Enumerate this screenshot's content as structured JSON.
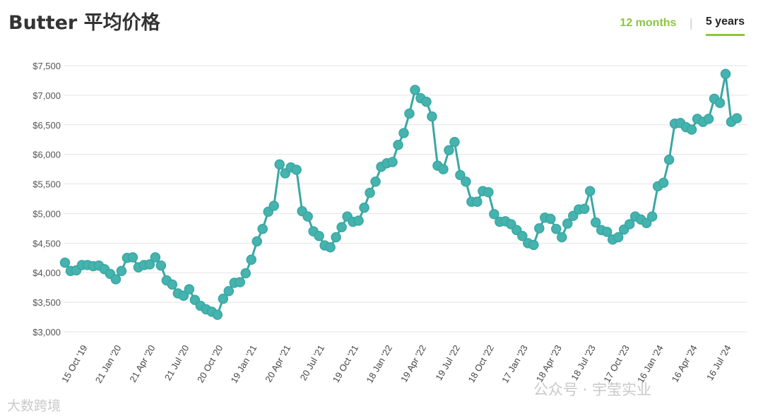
{
  "title": "Butter 平均价格",
  "range_tabs": {
    "twelve_months": "12 months",
    "separator": "|",
    "five_years": "5 years"
  },
  "colors": {
    "line": "#3aa7a3",
    "marker_fill": "#45b3ae",
    "grid": "#e3e3e3",
    "tab_active": "#8cc63f"
  },
  "watermarks": {
    "left": "大数跨境",
    "right": "公众号 · 宇莹实业"
  },
  "chart_data": {
    "type": "line",
    "title": "Butter 平均价格",
    "xlabel": "",
    "ylabel": "",
    "ylim": [
      3000,
      7500
    ],
    "grid": true,
    "y_ticks": [
      {
        "value": 3000,
        "label": "$3,000"
      },
      {
        "value": 3500,
        "label": "$3,500"
      },
      {
        "value": 4000,
        "label": "$4,000"
      },
      {
        "value": 4500,
        "label": "$4,500"
      },
      {
        "value": 5000,
        "label": "$5,000"
      },
      {
        "value": 5500,
        "label": "$5,500"
      },
      {
        "value": 6000,
        "label": "$6,000"
      },
      {
        "value": 6500,
        "label": "$6,500"
      },
      {
        "value": 7000,
        "label": "$7,000"
      },
      {
        "value": 7500,
        "label": "$7,500"
      }
    ],
    "x_ticks": [
      {
        "index": 4,
        "label": "15 Oct '19"
      },
      {
        "index": 10,
        "label": "21 Jan '20"
      },
      {
        "index": 16,
        "label": "21 Apr '20"
      },
      {
        "index": 22,
        "label": "21 Jul '20"
      },
      {
        "index": 28,
        "label": "20 Oct '20"
      },
      {
        "index": 34,
        "label": "19 Jan '21"
      },
      {
        "index": 40,
        "label": "20 Apr '21"
      },
      {
        "index": 46,
        "label": "20 Jul '21"
      },
      {
        "index": 52,
        "label": "19 Oct '21"
      },
      {
        "index": 58,
        "label": "18 Jan '22"
      },
      {
        "index": 64,
        "label": "19 Apr '22"
      },
      {
        "index": 70,
        "label": "19 Jul '22"
      },
      {
        "index": 76,
        "label": "18 Oct '22"
      },
      {
        "index": 82,
        "label": "17 Jan '23"
      },
      {
        "index": 88,
        "label": "18 Apr '23"
      },
      {
        "index": 94,
        "label": "18 Jul '23"
      },
      {
        "index": 100,
        "label": "17 Oct '23"
      },
      {
        "index": 106,
        "label": "16 Jan '24"
      },
      {
        "index": 112,
        "label": "16 Apr '24"
      },
      {
        "index": 118,
        "label": "16 Jul '24"
      }
    ],
    "series": [
      {
        "values": [
          4170,
          4030,
          4040,
          4130,
          4130,
          4110,
          4120,
          4060,
          3980,
          3890,
          4030,
          4250,
          4260,
          4090,
          4130,
          4140,
          4260,
          4120,
          3870,
          3800,
          3650,
          3610,
          3720,
          3540,
          3440,
          3380,
          3340,
          3290,
          3560,
          3690,
          3830,
          3840,
          3990,
          4220,
          4530,
          4740,
          5030,
          5130,
          5830,
          5680,
          5780,
          5740,
          5040,
          4950,
          4700,
          4620,
          4460,
          4430,
          4600,
          4770,
          4950,
          4860,
          4880,
          5100,
          5350,
          5540,
          5790,
          5850,
          5870,
          6160,
          6360,
          6690,
          7090,
          6950,
          6890,
          6640,
          5810,
          5750,
          6070,
          6210,
          5650,
          5540,
          5200,
          5200,
          5380,
          5360,
          4990,
          4860,
          4870,
          4820,
          4720,
          4620,
          4500,
          4470,
          4750,
          4930,
          4910,
          4740,
          4600,
          4830,
          4960,
          5070,
          5080,
          5380,
          4850,
          4720,
          4690,
          4560,
          4600,
          4730,
          4820,
          4950,
          4900,
          4840,
          4950,
          5460,
          5520,
          5910,
          6520,
          6530,
          6460,
          6420,
          6600,
          6550,
          6600,
          6940,
          6870,
          7360,
          6550,
          6610
        ]
      }
    ]
  }
}
